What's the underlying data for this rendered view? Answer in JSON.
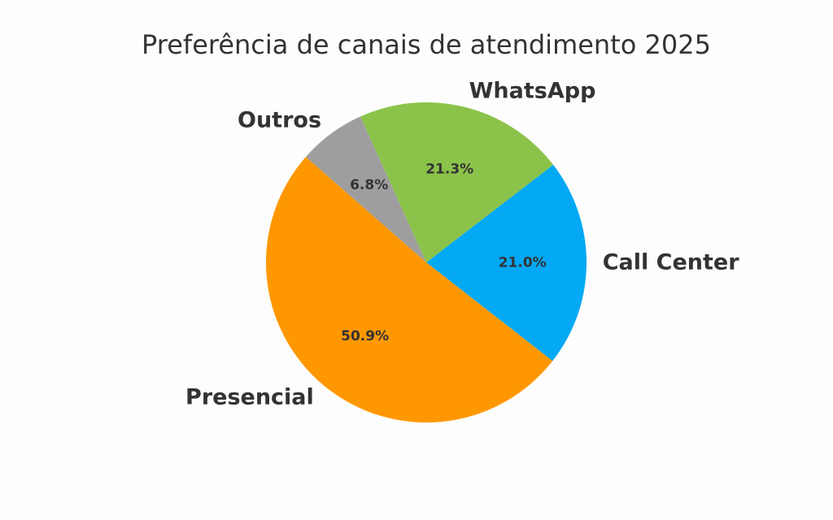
{
  "chart_data": {
    "type": "pie",
    "title": "Preferência de canais de atendimento 2025",
    "slices": [
      {
        "label": "Call Center",
        "value": 21.0,
        "value_label": "21.0%",
        "color": "#03a9f4"
      },
      {
        "label": "WhatsApp",
        "value": 21.3,
        "value_label": "21.3%",
        "color": "#8bc34a"
      },
      {
        "label": "Outros",
        "value": 6.8,
        "value_label": "6.8%",
        "color": "#9e9e9e"
      },
      {
        "label": "Presencial",
        "value": 50.9,
        "value_label": "50.9%",
        "color": "#ff9800"
      }
    ],
    "start_angle_deg": -38,
    "direction": "counterclockwise",
    "legend": "none"
  }
}
